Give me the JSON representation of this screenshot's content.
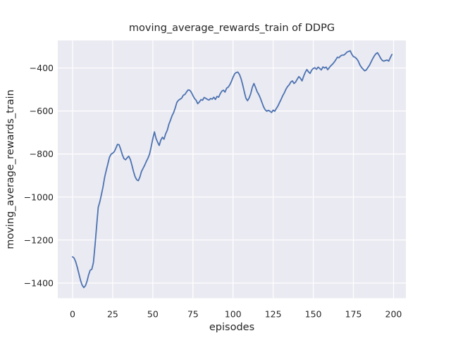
{
  "figure": {
    "title": "moving_average_rewards_train of DDPG",
    "xlabel": "episodes",
    "ylabel": "moving_average_rewards_train"
  },
  "chart_data": {
    "type": "line",
    "title": "moving_average_rewards_train of DDPG",
    "xlabel": "episodes",
    "ylabel": "moving_average_rewards_train",
    "grid": true,
    "legend_position": "none",
    "x_ticks": [
      0,
      25,
      50,
      75,
      100,
      125,
      150,
      175,
      200
    ],
    "x_tick_labels": [
      "0",
      "25",
      "50",
      "75",
      "100",
      "125",
      "150",
      "175",
      "200"
    ],
    "y_ticks": [
      -400,
      -600,
      -800,
      -1000,
      -1200,
      -1400
    ],
    "y_tick_labels": [
      "−400",
      "−600",
      "−800",
      "−1000",
      "−1200",
      "−1400"
    ],
    "xlim": [
      -9.2,
      207.7
    ],
    "ylim": [
      -1470.5,
      -272.1
    ],
    "colors": {
      "figure_bg": "#ffffff",
      "axes_bg": "#eaeaf2",
      "grid": "#ffffff",
      "line": "#4c72b0",
      "text": "#262626"
    },
    "series": [
      {
        "name": "moving_average_rewards_train",
        "x_start": 0,
        "x_step": 1,
        "values": [
          -1278,
          -1284,
          -1302,
          -1328,
          -1358,
          -1388,
          -1410,
          -1421,
          -1413,
          -1392,
          -1362,
          -1340,
          -1336,
          -1305,
          -1225,
          -1135,
          -1048,
          -1022,
          -988,
          -952,
          -908,
          -876,
          -846,
          -815,
          -801,
          -796,
          -789,
          -773,
          -755,
          -757,
          -778,
          -803,
          -821,
          -827,
          -818,
          -810,
          -825,
          -852,
          -882,
          -906,
          -920,
          -924,
          -906,
          -880,
          -866,
          -851,
          -834,
          -819,
          -800,
          -766,
          -729,
          -697,
          -727,
          -745,
          -760,
          -735,
          -722,
          -731,
          -706,
          -690,
          -662,
          -643,
          -622,
          -607,
          -585,
          -560,
          -550,
          -545,
          -540,
          -527,
          -523,
          -512,
          -502,
          -503,
          -513,
          -528,
          -542,
          -550,
          -566,
          -558,
          -547,
          -550,
          -537,
          -541,
          -546,
          -549,
          -542,
          -545,
          -536,
          -546,
          -532,
          -536,
          -520,
          -508,
          -503,
          -512,
          -494,
          -489,
          -478,
          -462,
          -443,
          -427,
          -421,
          -419,
          -430,
          -450,
          -478,
          -510,
          -540,
          -552,
          -540,
          -520,
          -490,
          -472,
          -490,
          -510,
          -523,
          -540,
          -560,
          -580,
          -594,
          -601,
          -597,
          -601,
          -607,
          -596,
          -601,
          -588,
          -576,
          -560,
          -545,
          -528,
          -515,
          -498,
          -486,
          -478,
          -465,
          -460,
          -472,
          -465,
          -452,
          -440,
          -448,
          -460,
          -438,
          -420,
          -407,
          -418,
          -425,
          -410,
          -402,
          -399,
          -406,
          -396,
          -402,
          -409,
          -395,
          -400,
          -396,
          -408,
          -398,
          -389,
          -382,
          -373,
          -362,
          -350,
          -352,
          -344,
          -340,
          -340,
          -334,
          -326,
          -323,
          -320,
          -336,
          -347,
          -350,
          -357,
          -368,
          -385,
          -397,
          -405,
          -413,
          -409,
          -398,
          -387,
          -372,
          -357,
          -344,
          -334,
          -329,
          -341,
          -355,
          -365,
          -368,
          -365,
          -363,
          -368,
          -352,
          -337
        ]
      }
    ]
  }
}
